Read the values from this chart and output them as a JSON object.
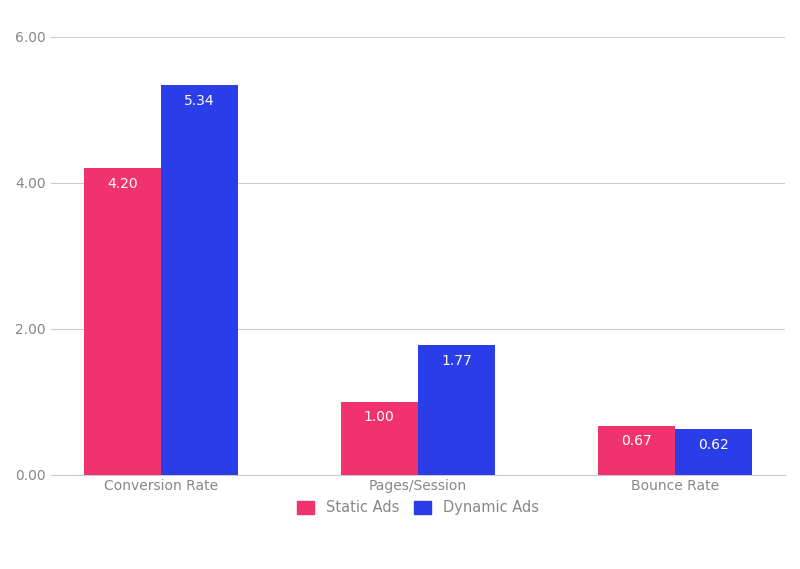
{
  "categories": [
    "Conversion Rate",
    "Pages/Session",
    "Bounce Rate"
  ],
  "static_ads": [
    4.2,
    1.0,
    0.67
  ],
  "dynamic_ads": [
    5.34,
    1.77,
    0.62
  ],
  "static_color": "#F0336E",
  "dynamic_color": "#2B3DE8",
  "ylim": [
    0,
    6.3
  ],
  "yticks": [
    0.0,
    2.0,
    4.0,
    6.0
  ],
  "bar_width": 0.3,
  "background_color": "#FFFFFF",
  "grid_color": "#CCCCCC",
  "legend_labels": [
    "Static Ads",
    "Dynamic Ads"
  ],
  "label_color": "#FFFFFF",
  "label_fontsize": 10,
  "tick_label_color": "#888888",
  "tick_fontsize": 10
}
